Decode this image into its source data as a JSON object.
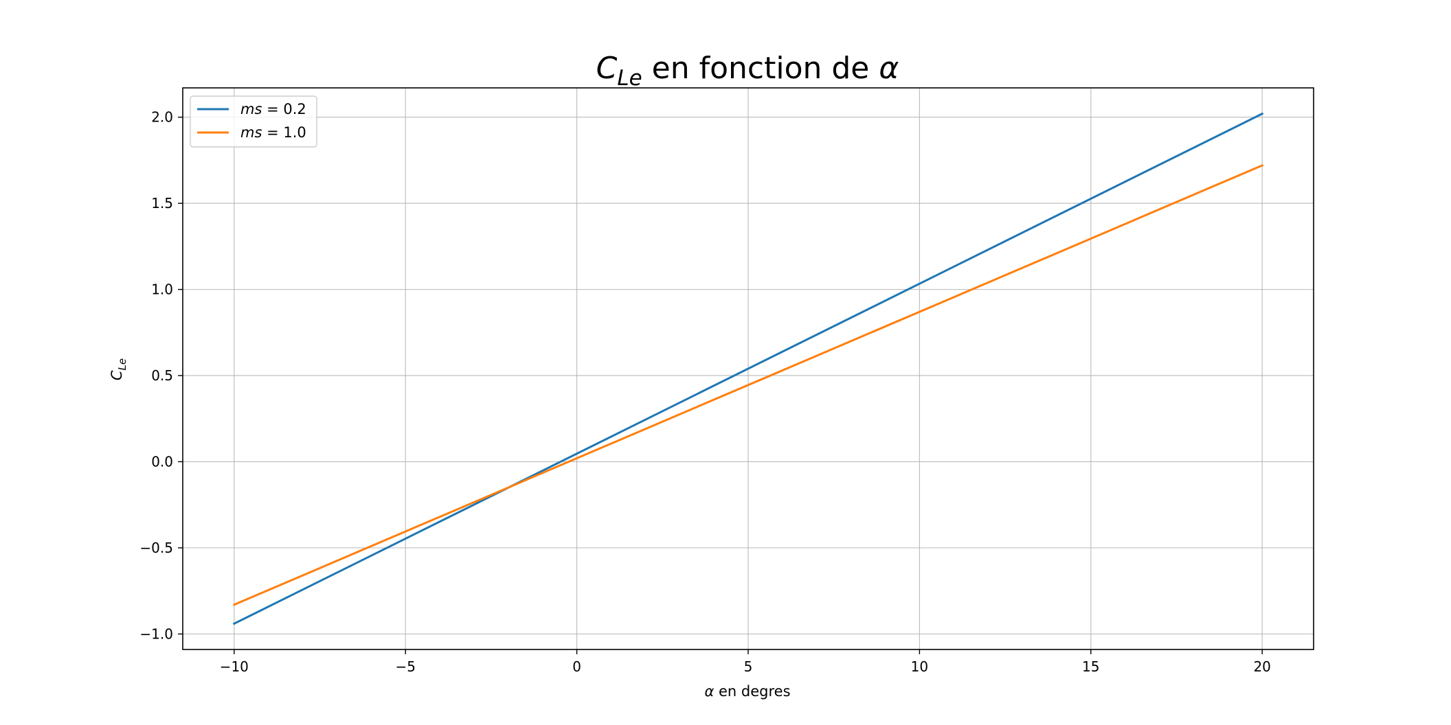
{
  "chart_data": {
    "type": "line",
    "title": {
      "main": "C",
      "sub": "Le",
      "rest": " en fonction de ",
      "symbol": "α"
    },
    "xlabel": {
      "symbol": "α",
      "rest": " en degres"
    },
    "ylabel": {
      "main": "C",
      "sub": "Le"
    },
    "xlim": [
      -11.5,
      21.5
    ],
    "ylim": [
      -1.09,
      2.17
    ],
    "xticks": [
      -10,
      -5,
      0,
      5,
      10,
      15,
      20
    ],
    "yticks": [
      -1.0,
      -0.5,
      0.0,
      0.5,
      1.0,
      1.5,
      2.0
    ],
    "xtick_labels": [
      "−10",
      "−5",
      "0",
      "5",
      "10",
      "15",
      "20"
    ],
    "ytick_labels": [
      "−1.0",
      "−0.5",
      "0.0",
      "0.5",
      "1.0",
      "1.5",
      "2.0"
    ],
    "grid": true,
    "legend": {
      "placement": "top-left"
    },
    "x": [
      -10,
      20
    ],
    "series": [
      {
        "name": {
          "var": "ms",
          "eq": " = ",
          "val": " 0.2"
        },
        "color": "#1f77b4",
        "values": [
          -0.94,
          2.02
        ]
      },
      {
        "name": {
          "var": "ms",
          "eq": " = ",
          "val": " 1.0"
        },
        "color": "#ff7f0e",
        "values": [
          -0.83,
          1.72
        ]
      }
    ]
  }
}
